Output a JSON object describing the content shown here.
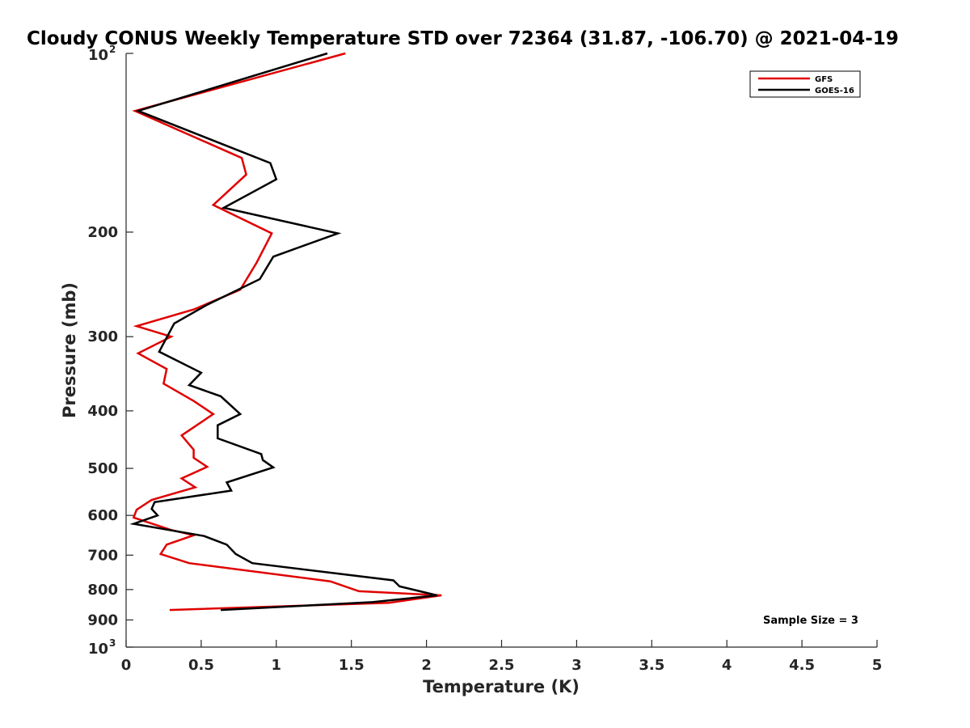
{
  "chart_data": {
    "type": "line",
    "title": "Cloudy CONUS Weekly Temperature STD over 72364 (31.87, -106.70) @ 2021-04-19",
    "xlabel": "Temperature (K)",
    "ylabel": "Pressure (mb)",
    "xlim": [
      0,
      5
    ],
    "ylim": [
      100,
      1000
    ],
    "y_scale": "log",
    "y_reversed": true,
    "grid": false,
    "legend_position": "top-right",
    "x_ticks": [
      "0",
      "0.5",
      "1",
      "1.5",
      "2",
      "2.5",
      "3",
      "3.5",
      "4",
      "4.5",
      "5"
    ],
    "y_ticks": [
      {
        "value": 100,
        "base": "10",
        "exp": "2"
      },
      {
        "value": 200,
        "label": "200"
      },
      {
        "value": 300,
        "label": "300"
      },
      {
        "value": 400,
        "label": "400"
      },
      {
        "value": 500,
        "label": "500"
      },
      {
        "value": 600,
        "label": "600"
      },
      {
        "value": 700,
        "label": "700"
      },
      {
        "value": 800,
        "label": "800"
      },
      {
        "value": 900,
        "label": "900"
      },
      {
        "value": 1000,
        "base": "10",
        "exp": "3"
      }
    ],
    "annotation": "Sample Size = 3",
    "series": [
      {
        "name": "GFS",
        "color": "#e00000",
        "points": [
          [
            1.46,
            100
          ],
          [
            0.06,
            125
          ],
          [
            0.77,
            150
          ],
          [
            0.8,
            160
          ],
          [
            0.58,
            180
          ],
          [
            0.97,
            201
          ],
          [
            0.87,
            225
          ],
          [
            0.76,
            250
          ],
          [
            0.45,
            270
          ],
          [
            0.07,
            288
          ],
          [
            0.3,
            300
          ],
          [
            0.08,
            320
          ],
          [
            0.27,
            340
          ],
          [
            0.25,
            360
          ],
          [
            0.45,
            385
          ],
          [
            0.58,
            405
          ],
          [
            0.37,
            440
          ],
          [
            0.45,
            465
          ],
          [
            0.45,
            480
          ],
          [
            0.54,
            497
          ],
          [
            0.37,
            520
          ],
          [
            0.46,
            538
          ],
          [
            0.17,
            565
          ],
          [
            0.07,
            587
          ],
          [
            0.05,
            605
          ],
          [
            0.3,
            635
          ],
          [
            0.45,
            648
          ],
          [
            0.27,
            672
          ],
          [
            0.23,
            697
          ],
          [
            0.42,
            722
          ],
          [
            1.36,
            775
          ],
          [
            1.55,
            805
          ],
          [
            2.1,
            818
          ],
          [
            1.75,
            842
          ],
          [
            0.29,
            866
          ]
        ]
      },
      {
        "name": "GOES-16",
        "color": "#000000",
        "points": [
          [
            1.34,
            100
          ],
          [
            0.08,
            125
          ],
          [
            0.96,
            153
          ],
          [
            1.0,
            163
          ],
          [
            0.65,
            182
          ],
          [
            1.41,
            201
          ],
          [
            0.98,
            220
          ],
          [
            0.89,
            240
          ],
          [
            0.54,
            265
          ],
          [
            0.32,
            285
          ],
          [
            0.22,
            318
          ],
          [
            0.5,
            345
          ],
          [
            0.42,
            362
          ],
          [
            0.63,
            378
          ],
          [
            0.76,
            405
          ],
          [
            0.61,
            423
          ],
          [
            0.61,
            445
          ],
          [
            0.9,
            473
          ],
          [
            0.91,
            484
          ],
          [
            0.98,
            498
          ],
          [
            0.67,
            528
          ],
          [
            0.7,
            545
          ],
          [
            0.19,
            570
          ],
          [
            0.17,
            585
          ],
          [
            0.21,
            600
          ],
          [
            0.05,
            620
          ],
          [
            0.52,
            650
          ],
          [
            0.67,
            672
          ],
          [
            0.73,
            697
          ],
          [
            0.84,
            722
          ],
          [
            1.78,
            772
          ],
          [
            1.82,
            790
          ],
          [
            2.07,
            818
          ],
          [
            1.64,
            840
          ],
          [
            0.63,
            866
          ]
        ]
      }
    ]
  }
}
